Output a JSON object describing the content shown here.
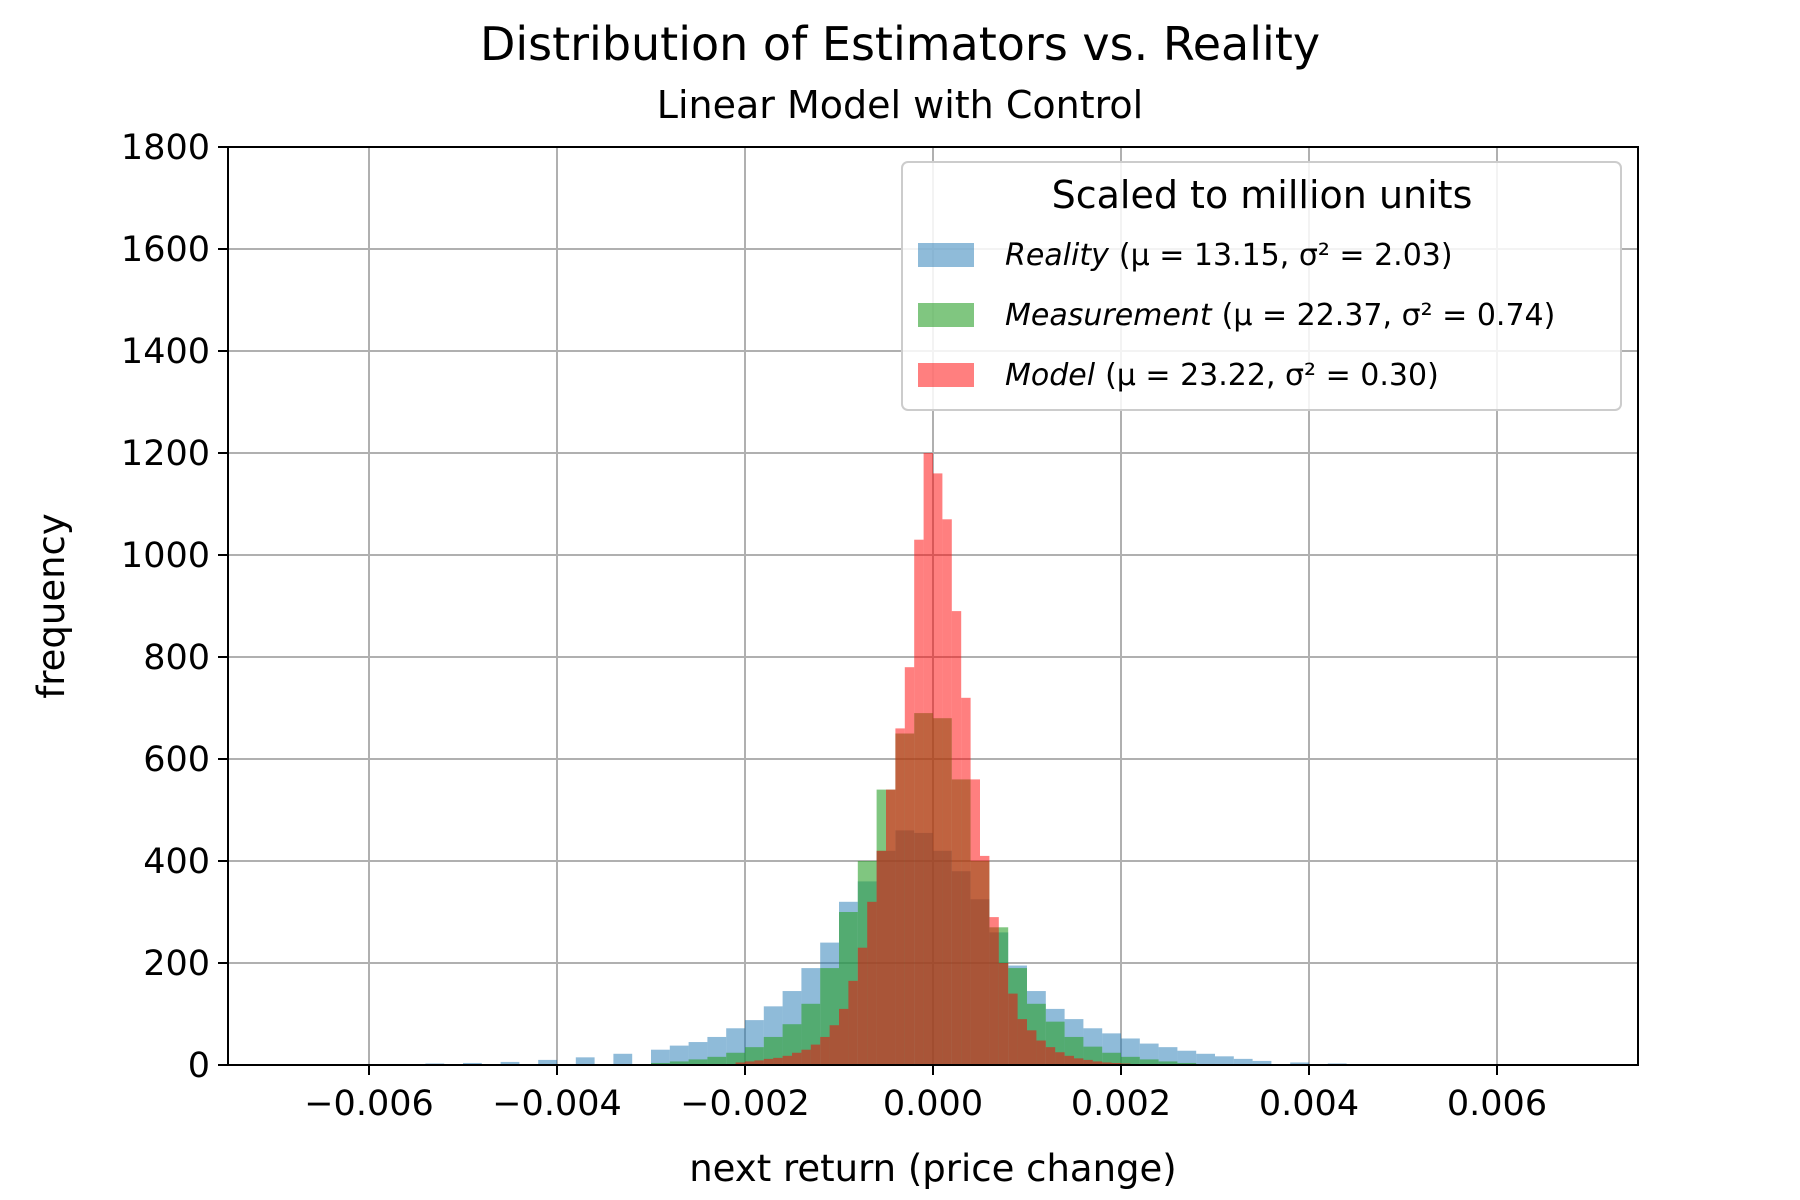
{
  "chart_data": {
    "type": "bar",
    "subtype": "overlaid-histogram",
    "title": "Distribution of Estimators vs. Reality",
    "subtitle": "Linear Model with Control",
    "xlabel": "next return (price change)",
    "ylabel": "frequency",
    "xlim": [
      -0.0075,
      0.0075
    ],
    "ylim": [
      0,
      1800
    ],
    "xticks": [
      -0.006,
      -0.004,
      -0.002,
      0.0,
      0.002,
      0.004,
      0.006
    ],
    "xtick_labels": [
      "−0.006",
      "−0.004",
      "−0.002",
      "0.000",
      "0.002",
      "0.004",
      "0.006"
    ],
    "yticks": [
      0,
      200,
      400,
      600,
      800,
      1000,
      1200,
      1400,
      1600,
      1800
    ],
    "ytick_labels": [
      "0",
      "200",
      "400",
      "600",
      "800",
      "1000",
      "1200",
      "1400",
      "1600",
      "1800"
    ],
    "grid": true,
    "legend": {
      "title": "Scaled to million units",
      "placement": "top-right"
    },
    "series": [
      {
        "name": "Reality",
        "stat_text": "(μ = 13.15, σ² = 2.03)",
        "color": "#1f77b4",
        "alpha": 0.5,
        "x": [
          -0.0057,
          -0.0053,
          -0.0049,
          -0.0045,
          -0.0041,
          -0.0037,
          -0.0033,
          -0.0029,
          -0.0027,
          -0.0025,
          -0.0023,
          -0.0021,
          -0.0019,
          -0.0017,
          -0.0015,
          -0.0013,
          -0.0011,
          -0.0009,
          -0.0007,
          -0.0005,
          -0.0003,
          -0.0001,
          0.0001,
          0.0003,
          0.0005,
          0.0007,
          0.0009,
          0.0011,
          0.0013,
          0.0015,
          0.0017,
          0.0019,
          0.0021,
          0.0023,
          0.0025,
          0.0027,
          0.0029,
          0.0031,
          0.0033,
          0.0035,
          0.0039,
          0.0043,
          0.0047,
          0.0051
        ],
        "values": [
          2,
          3,
          4,
          6,
          10,
          15,
          22,
          30,
          38,
          45,
          55,
          72,
          88,
          115,
          145,
          190,
          240,
          320,
          360,
          420,
          460,
          455,
          420,
          380,
          325,
          260,
          195,
          145,
          110,
          90,
          72,
          62,
          52,
          42,
          35,
          28,
          22,
          17,
          12,
          8,
          5,
          3,
          2,
          1
        ],
        "bin_width": 0.0002
      },
      {
        "name": "Measurement",
        "stat_text": "(μ = 22.37, σ² = 0.74)",
        "color": "#2ca02c",
        "alpha": 0.6,
        "x": [
          -0.0029,
          -0.0027,
          -0.0025,
          -0.0023,
          -0.0021,
          -0.0019,
          -0.0017,
          -0.0015,
          -0.0013,
          -0.0011,
          -0.0009,
          -0.0007,
          -0.0005,
          -0.0003,
          -0.0001,
          0.0001,
          0.0003,
          0.0005,
          0.0007,
          0.0009,
          0.0011,
          0.0013,
          0.0015,
          0.0017,
          0.0019,
          0.0021,
          0.0023,
          0.0025,
          0.0027,
          0.0029
        ],
        "values": [
          4,
          7,
          11,
          16,
          24,
          35,
          55,
          80,
          120,
          190,
          300,
          400,
          540,
          650,
          690,
          680,
          560,
          400,
          270,
          190,
          120,
          85,
          55,
          36,
          24,
          16,
          11,
          7,
          4,
          2
        ],
        "bin_width": 0.0002
      },
      {
        "name": "Model",
        "stat_text": "(μ = 23.22, σ² = 0.30)",
        "color": "#ff0000",
        "alpha": 0.5,
        "x": [
          -0.00205,
          -0.00195,
          -0.00185,
          -0.00175,
          -0.00165,
          -0.00155,
          -0.00145,
          -0.00135,
          -0.00125,
          -0.00115,
          -0.00105,
          -0.00095,
          -0.00085,
          -0.00075,
          -0.00065,
          -0.00055,
          -0.00045,
          -0.00035,
          -0.00025,
          -0.00015,
          -5e-05,
          5e-05,
          0.00015,
          0.00025,
          0.00035,
          0.00045,
          0.00055,
          0.00065,
          0.00075,
          0.00085,
          0.00095,
          0.00105,
          0.00115,
          0.00125,
          0.00135,
          0.00145,
          0.00155,
          0.00165,
          0.00175,
          0.00185,
          0.00195,
          0.00205
        ],
        "values": [
          5,
          7,
          9,
          12,
          14,
          18,
          24,
          30,
          40,
          55,
          78,
          110,
          165,
          230,
          320,
          420,
          540,
          660,
          780,
          1030,
          1200,
          1160,
          1070,
          890,
          720,
          560,
          410,
          290,
          200,
          140,
          90,
          68,
          48,
          35,
          25,
          18,
          13,
          10,
          7,
          5,
          4,
          3
        ],
        "bin_width": 0.0001
      }
    ]
  }
}
